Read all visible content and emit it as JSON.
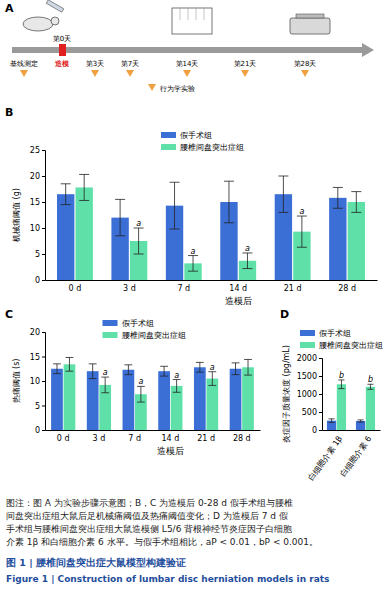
{
  "chart_data": [
    {
      "type": "bar",
      "title": "B",
      "ylabel": "机械痛阈值 (g)",
      "xlabel": "造模后",
      "categories": [
        "0 d",
        "3 d",
        "7 d",
        "14 d",
        "21 d",
        "28 d"
      ],
      "ylim": [
        0,
        25
      ],
      "yticks": [
        0,
        5,
        10,
        15,
        20,
        25
      ],
      "grid": false,
      "legend": "top",
      "series": [
        {
          "name": "假手术组",
          "color": "#3b6fd6",
          "values": [
            16.5,
            12.0,
            14.3,
            15.0,
            16.5,
            15.8
          ],
          "errors": [
            2.0,
            3.5,
            4.5,
            4.0,
            3.5,
            2.0
          ]
        },
        {
          "name": "腰椎间盘突出症组",
          "color": "#5fe0a8",
          "values": [
            17.8,
            7.5,
            3.2,
            3.7,
            9.3,
            15.0
          ],
          "errors": [
            2.5,
            2.5,
            1.5,
            1.5,
            3.0,
            2.0
          ],
          "annotations": [
            null,
            "a",
            "a",
            "a",
            "a",
            null
          ]
        }
      ]
    },
    {
      "type": "bar",
      "title": "C",
      "ylabel": "热痛阈值 (s)",
      "xlabel": "造模后",
      "categories": [
        "0 d",
        "3 d",
        "7 d",
        "14 d",
        "21 d",
        "28 d"
      ],
      "ylim": [
        0,
        20
      ],
      "yticks": [
        0,
        5,
        10,
        15,
        20
      ],
      "grid": false,
      "legend": "top",
      "series": [
        {
          "name": "假手术组",
          "color": "#3b6fd6",
          "values": [
            12.5,
            12.0,
            12.3,
            12.0,
            12.8,
            12.5
          ],
          "errors": [
            1.0,
            1.5,
            1.0,
            1.0,
            1.0,
            1.2
          ]
        },
        {
          "name": "腰椎间盘突出症组",
          "color": "#5fe0a8",
          "values": [
            13.4,
            9.2,
            7.3,
            9.0,
            10.5,
            12.8
          ],
          "errors": [
            1.4,
            1.6,
            1.6,
            1.3,
            1.4,
            1.6
          ],
          "annotations": [
            null,
            "a",
            "a",
            "a",
            "a",
            null
          ]
        }
      ]
    },
    {
      "type": "bar",
      "title": "D",
      "ylabel": "炎症因子质量浓度 (pg/mL)",
      "categories": [
        "白细胞介素 1β",
        "白细胞介素 6"
      ],
      "ylim": [
        0,
        2000
      ],
      "yticks": [
        0,
        500,
        1000,
        1500,
        2000
      ],
      "grid": false,
      "legend": "top-right",
      "series": [
        {
          "name": "假手术组",
          "color": "#3b6fd6",
          "values": [
            260,
            250
          ],
          "errors": [
            50,
            30
          ]
        },
        {
          "name": "腰椎间盘突出症组",
          "color": "#5fe0a8",
          "values": [
            1270,
            1200
          ],
          "errors": [
            120,
            70
          ],
          "annotations": [
            "b",
            "b"
          ]
        }
      ]
    }
  ],
  "panel_a": {
    "label": "A",
    "baseline": "基线测定",
    "days": [
      "第0天",
      "第3天",
      "第7天",
      "第14天",
      "第21天",
      "第28天"
    ],
    "modeling": "造模",
    "behavior": "行为学实验"
  },
  "caption": {
    "lines": [
      "图注：图 A 为实验步骤示意图；B，C 为造模后 0-28 d 假手术组与腰椎",
      "间盘突出症组大鼠后足机械痛阈值及热痛阈值变化；D 为造模后 7 d 假",
      "手术组与腰椎间盘突出症组大鼠造模侧 L5/6 背根神经节炎症因子白细胞",
      "介素 1β 和白细胞介素 6 水平。与假手术组相比，aP < 0.01，bP < 0.001。"
    ],
    "title_cn": "图 1 | 腰椎间盘突出症大鼠模型构建验证",
    "title_en": "Figure 1 | Construction of lumbar disc herniation models in rats"
  }
}
